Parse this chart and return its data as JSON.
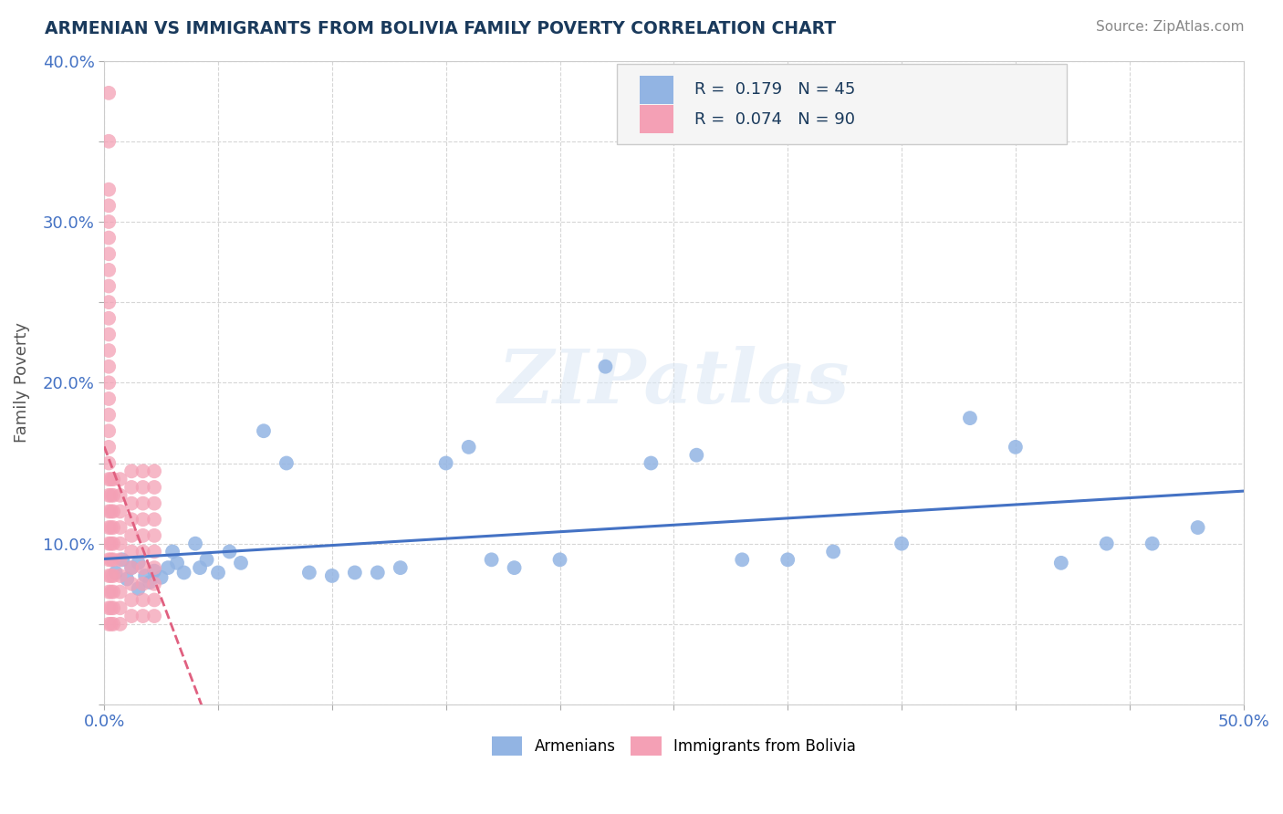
{
  "title": "ARMENIAN VS IMMIGRANTS FROM BOLIVIA FAMILY POVERTY CORRELATION CHART",
  "source": "Source: ZipAtlas.com",
  "ylabel": "Family Poverty",
  "xlim": [
    0.0,
    0.5
  ],
  "ylim": [
    0.0,
    0.4
  ],
  "xtick_positions": [
    0.0,
    0.05,
    0.1,
    0.15,
    0.2,
    0.25,
    0.3,
    0.35,
    0.4,
    0.45,
    0.5
  ],
  "xtick_labels": [
    "0.0%",
    "",
    "",
    "",
    "",
    "",
    "",
    "",
    "",
    "",
    "50.0%"
  ],
  "ytick_positions": [
    0.0,
    0.05,
    0.1,
    0.15,
    0.2,
    0.25,
    0.3,
    0.35,
    0.4
  ],
  "ytick_labels": [
    "",
    "",
    "10.0%",
    "",
    "20.0%",
    "",
    "30.0%",
    "",
    "40.0%"
  ],
  "r_blue": 0.179,
  "n_blue": 45,
  "r_pink": 0.074,
  "n_pink": 90,
  "color_blue": "#92b4e3",
  "color_pink": "#f4a0b5",
  "color_blue_line": "#4472c4",
  "color_pink_line": "#e06080",
  "watermark": "ZIPatlas",
  "arm_x": [
    0.005,
    0.008,
    0.01,
    0.012,
    0.015,
    0.015,
    0.018,
    0.02,
    0.022,
    0.025,
    0.028,
    0.03,
    0.032,
    0.035,
    0.04,
    0.042,
    0.045,
    0.05,
    0.055,
    0.06,
    0.07,
    0.08,
    0.09,
    0.1,
    0.11,
    0.12,
    0.13,
    0.15,
    0.16,
    0.17,
    0.18,
    0.2,
    0.22,
    0.24,
    0.26,
    0.28,
    0.3,
    0.32,
    0.35,
    0.38,
    0.4,
    0.42,
    0.44,
    0.46,
    0.48
  ],
  "arm_y": [
    0.082,
    0.09,
    0.078,
    0.085,
    0.088,
    0.072,
    0.08,
    0.076,
    0.083,
    0.079,
    0.085,
    0.095,
    0.088,
    0.082,
    0.1,
    0.085,
    0.09,
    0.082,
    0.095,
    0.088,
    0.17,
    0.15,
    0.082,
    0.08,
    0.082,
    0.082,
    0.085,
    0.15,
    0.16,
    0.09,
    0.085,
    0.09,
    0.21,
    0.15,
    0.155,
    0.09,
    0.09,
    0.095,
    0.1,
    0.178,
    0.16,
    0.088,
    0.1,
    0.1,
    0.11
  ],
  "bol_x": [
    0.002,
    0.002,
    0.002,
    0.002,
    0.002,
    0.002,
    0.002,
    0.002,
    0.002,
    0.002,
    0.002,
    0.002,
    0.002,
    0.002,
    0.002,
    0.002,
    0.002,
    0.002,
    0.002,
    0.002,
    0.002,
    0.002,
    0.002,
    0.002,
    0.002,
    0.002,
    0.002,
    0.002,
    0.002,
    0.002,
    0.007,
    0.007,
    0.007,
    0.007,
    0.007,
    0.007,
    0.007,
    0.007,
    0.007,
    0.007,
    0.012,
    0.012,
    0.012,
    0.012,
    0.012,
    0.012,
    0.012,
    0.012,
    0.012,
    0.012,
    0.017,
    0.017,
    0.017,
    0.017,
    0.017,
    0.017,
    0.017,
    0.017,
    0.017,
    0.017,
    0.022,
    0.022,
    0.022,
    0.022,
    0.022,
    0.022,
    0.022,
    0.022,
    0.022,
    0.022,
    0.003,
    0.003,
    0.003,
    0.003,
    0.003,
    0.003,
    0.003,
    0.003,
    0.003,
    0.003,
    0.004,
    0.004,
    0.004,
    0.004,
    0.004,
    0.004,
    0.004,
    0.004,
    0.004,
    0.004
  ],
  "bol_y": [
    0.05,
    0.06,
    0.07,
    0.08,
    0.09,
    0.1,
    0.11,
    0.12,
    0.13,
    0.14,
    0.15,
    0.16,
    0.17,
    0.18,
    0.19,
    0.2,
    0.21,
    0.22,
    0.23,
    0.24,
    0.25,
    0.26,
    0.27,
    0.28,
    0.29,
    0.3,
    0.31,
    0.32,
    0.35,
    0.38,
    0.05,
    0.06,
    0.07,
    0.08,
    0.09,
    0.1,
    0.11,
    0.12,
    0.13,
    0.14,
    0.055,
    0.065,
    0.075,
    0.085,
    0.095,
    0.105,
    0.115,
    0.125,
    0.135,
    0.145,
    0.055,
    0.065,
    0.075,
    0.085,
    0.095,
    0.105,
    0.115,
    0.125,
    0.135,
    0.145,
    0.055,
    0.065,
    0.075,
    0.085,
    0.095,
    0.105,
    0.115,
    0.125,
    0.135,
    0.145,
    0.05,
    0.06,
    0.07,
    0.08,
    0.09,
    0.1,
    0.11,
    0.12,
    0.13,
    0.14,
    0.05,
    0.06,
    0.07,
    0.08,
    0.09,
    0.1,
    0.11,
    0.12,
    0.13,
    0.14
  ]
}
